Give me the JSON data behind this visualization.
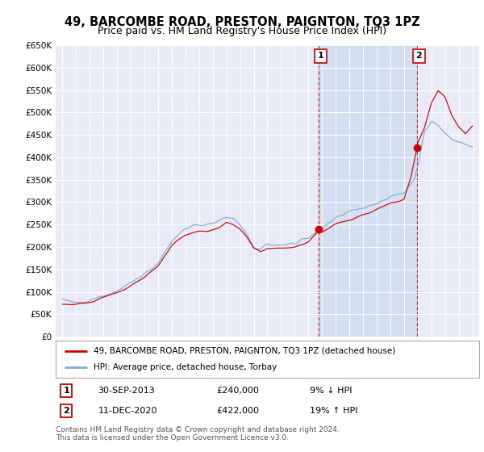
{
  "title": "49, BARCOMBE ROAD, PRESTON, PAIGNTON, TQ3 1PZ",
  "subtitle": "Price paid vs. HM Land Registry's House Price Index (HPI)",
  "title_fontsize": 10.5,
  "subtitle_fontsize": 9,
  "ylim": [
    0,
    650000
  ],
  "yticks": [
    0,
    50000,
    100000,
    150000,
    200000,
    250000,
    300000,
    350000,
    400000,
    450000,
    500000,
    550000,
    600000,
    650000
  ],
  "ytick_labels": [
    "£0",
    "£50K",
    "£100K",
    "£150K",
    "£200K",
    "£250K",
    "£300K",
    "£350K",
    "£400K",
    "£450K",
    "£500K",
    "£550K",
    "£600K",
    "£650K"
  ],
  "xlim_start": 1994.5,
  "xlim_end": 2025.5,
  "xticks": [
    1995,
    1996,
    1997,
    1998,
    1999,
    2000,
    2001,
    2002,
    2003,
    2004,
    2005,
    2006,
    2007,
    2008,
    2009,
    2010,
    2011,
    2012,
    2013,
    2014,
    2015,
    2016,
    2017,
    2018,
    2019,
    2020,
    2021,
    2022,
    2023,
    2024,
    2025
  ],
  "background_color": "#ffffff",
  "plot_bg_color": "#e8eaf6",
  "grid_color": "#ffffff",
  "red_color": "#cc0000",
  "blue_color": "#7bafd4",
  "shade_color": "#c8d8ee",
  "sale1_x": 2013.75,
  "sale1_y": 240000,
  "sale1_label": "1",
  "sale1_date": "30-SEP-2013",
  "sale1_price": "£240,000",
  "sale1_hpi": "9% ↓ HPI",
  "sale2_x": 2020.95,
  "sale2_y": 422000,
  "sale2_label": "2",
  "sale2_date": "11-DEC-2020",
  "sale2_price": "£422,000",
  "sale2_hpi": "19% ↑ HPI",
  "legend_line1": "49, BARCOMBE ROAD, PRESTON, PAIGNTON, TQ3 1PZ (detached house)",
  "legend_line2": "HPI: Average price, detached house, Torbay",
  "footer": "Contains HM Land Registry data © Crown copyright and database right 2024.\nThis data is licensed under the Open Government Licence v3.0."
}
